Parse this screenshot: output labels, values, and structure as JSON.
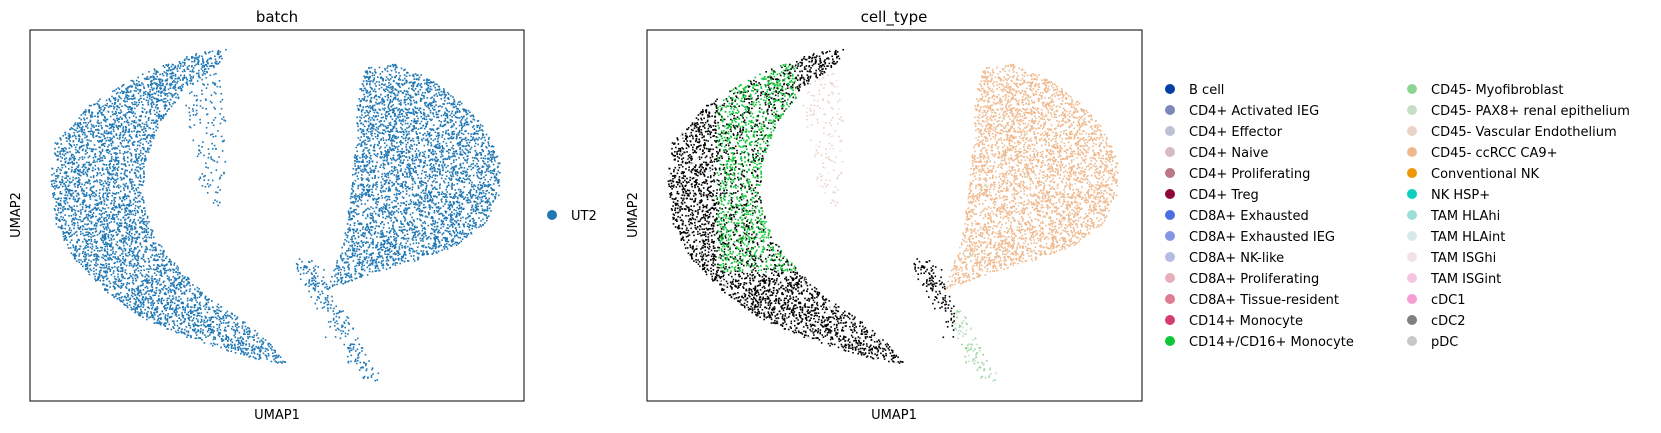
{
  "chart_data": [
    {
      "type": "scatter",
      "title": "batch",
      "xlabel": "UMAP1",
      "ylabel": "UMAP2",
      "grid": false,
      "ticks": "none",
      "legend_placement": "right",
      "legend": [
        {
          "label": "UT2",
          "color": "#1f77b4"
        }
      ],
      "point_color": "#1f77b4",
      "approx_points": 9000
    },
    {
      "type": "scatter",
      "title": "cell_type",
      "xlabel": "UMAP1",
      "ylabel": "UMAP2",
      "grid": false,
      "ticks": "none",
      "legend_placement": "right",
      "legend": [
        {
          "label": "B cell",
          "color": "#023fa5"
        },
        {
          "label": "CD4+ Activated IEG",
          "color": "#7d87b9"
        },
        {
          "label": "CD4+ Effector",
          "color": "#bec1d4"
        },
        {
          "label": "CD4+ Naive",
          "color": "#d6bcc0"
        },
        {
          "label": "CD4+ Proliferating",
          "color": "#bb7784"
        },
        {
          "label": "CD4+ Treg",
          "color": "#8e063b"
        },
        {
          "label": "CD8A+ Exhausted",
          "color": "#4a6fe3"
        },
        {
          "label": "CD8A+ Exhausted IEG",
          "color": "#8595e1"
        },
        {
          "label": "CD8A+ NK-like",
          "color": "#b5bbe3"
        },
        {
          "label": "CD8A+ Proliferating",
          "color": "#e6afb9"
        },
        {
          "label": "CD8A+ Tissue-resident",
          "color": "#e07b91"
        },
        {
          "label": "CD14+ Monocyte",
          "color": "#d33f6a"
        },
        {
          "label": "CD14+/CD16+ Monocyte",
          "color": "#11c638"
        },
        {
          "label": "CD45- Myofibroblast",
          "color": "#8dd593"
        },
        {
          "label": "CD45- PAX8+ renal epithelium",
          "color": "#c6dec7"
        },
        {
          "label": "CD45- Vascular Endothelium",
          "color": "#ead3c6"
        },
        {
          "label": "CD45- ccRCC CA9+",
          "color": "#f0b98d"
        },
        {
          "label": "Conventional NK",
          "color": "#ef9708"
        },
        {
          "label": "NK HSP+",
          "color": "#0fcfc0"
        },
        {
          "label": "TAM HLAhi",
          "color": "#9cded6"
        },
        {
          "label": "TAM HLAint",
          "color": "#d5eae7"
        },
        {
          "label": "TAM ISGhi",
          "color": "#f3e1eb"
        },
        {
          "label": "TAM ISGint",
          "color": "#f6c4e1"
        },
        {
          "label": "cDC1",
          "color": "#f79cd4"
        },
        {
          "label": "cDC2",
          "color": "#7f7f7f"
        },
        {
          "label": "pDC",
          "color": "#c7c7c7"
        }
      ],
      "approx_points": 9000
    }
  ]
}
